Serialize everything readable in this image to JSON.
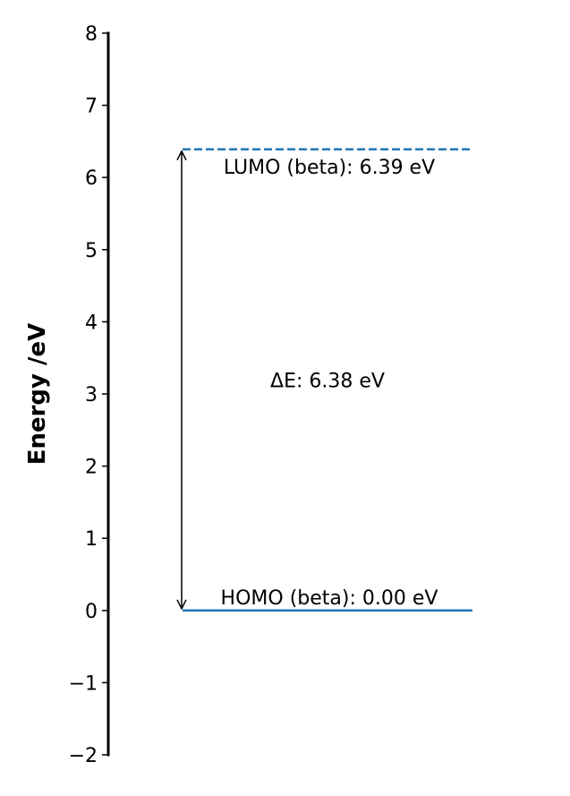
{
  "chart_data": {
    "type": "energy-level-diagram",
    "ylabel": "Energy /eV",
    "ylim": [
      -2,
      8
    ],
    "yticks": [
      -2,
      -1,
      0,
      1,
      2,
      3,
      4,
      5,
      6,
      7,
      8
    ],
    "ytick_labels": [
      "−2",
      "−1",
      "0",
      "1",
      "2",
      "3",
      "4",
      "5",
      "6",
      "7",
      "8"
    ],
    "levels": [
      {
        "name": "HOMO (beta)",
        "energy": 0.0,
        "label": "HOMO (beta): 0.00 eV",
        "style": "solid",
        "color": "#1f77b4"
      },
      {
        "name": "LUMO (beta)",
        "energy": 6.39,
        "label": "LUMO (beta): 6.39 eV",
        "style": "dashed",
        "color": "#1f77b4"
      }
    ],
    "gap": {
      "from": 0.0,
      "to": 6.39,
      "label": "ΔE: 6.38 eV"
    },
    "grid": false
  }
}
